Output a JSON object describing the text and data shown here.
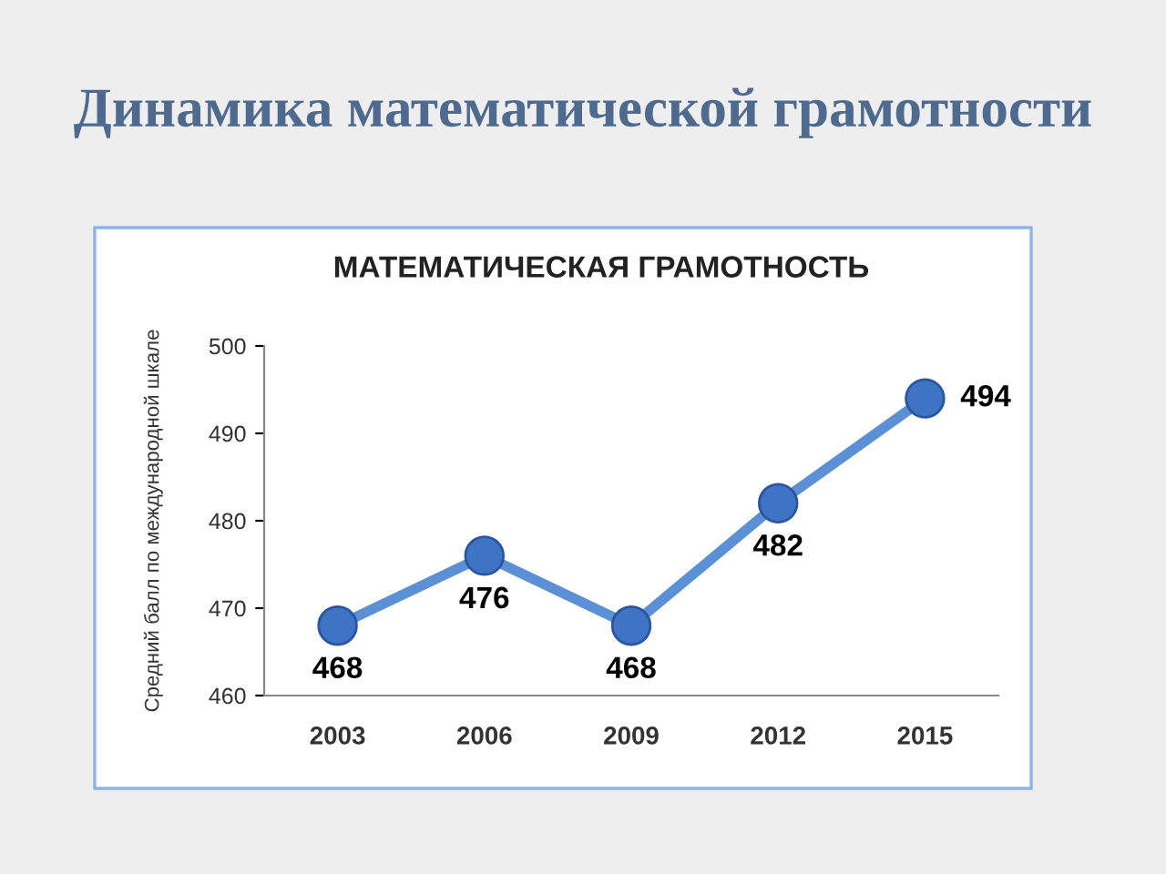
{
  "chart_data": {
    "type": "line",
    "title": "Динамика математической грамотности",
    "subtitle": "МАТЕМАТИЧЕСКАЯ ГРАМОТНОСТЬ",
    "ylabel": "Средний балл по международной шкале",
    "categories": [
      "2003",
      "2006",
      "2009",
      "2012",
      "2015"
    ],
    "series": [
      {
        "color": "#5b8fd6",
        "values": [
          468,
          476,
          468,
          482,
          494
        ]
      }
    ],
    "ylim": [
      460,
      500
    ],
    "yticks": [
      460,
      470,
      480,
      490,
      500
    ],
    "grid": false,
    "legend": false,
    "marker": "circle",
    "line_style": "solid",
    "data_labels": true
  }
}
